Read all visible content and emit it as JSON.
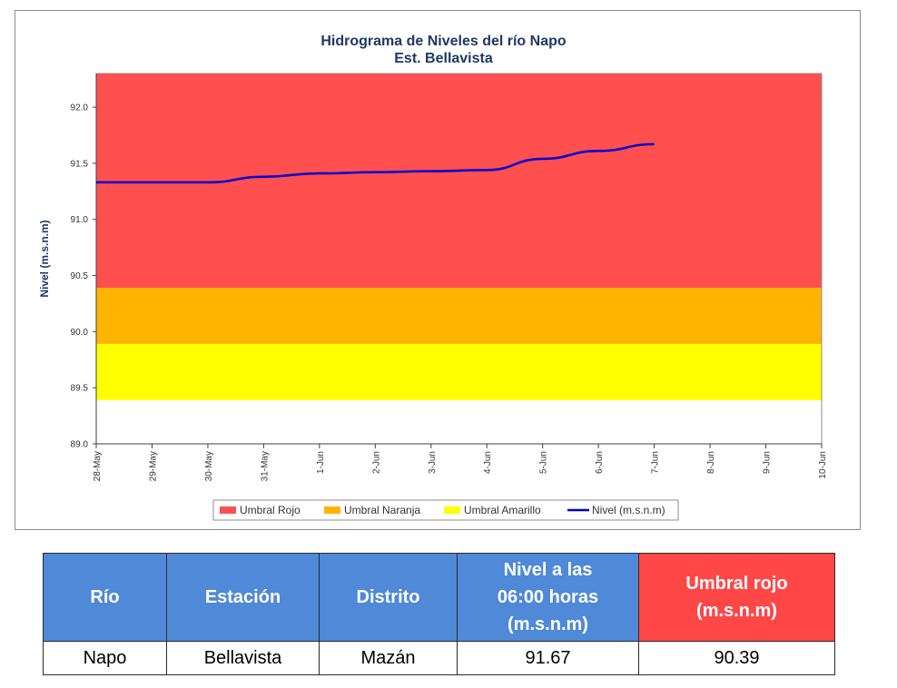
{
  "chart_data": {
    "type": "line",
    "title": "Hidrograma de Niveles del río Napo",
    "subtitle": "Est. Bellavista",
    "ylabel": "Nivel (m.s.n.m)",
    "xlabel": "",
    "ylim": [
      89.0,
      92.3
    ],
    "yticks": [
      "89.0",
      "89.5",
      "90.0",
      "90.5",
      "91.0",
      "91.5",
      "92.0"
    ],
    "categories": [
      "28-May",
      "29-May",
      "30-May",
      "31-May",
      "1-Jun",
      "2-Jun",
      "3-Jun",
      "4-Jun",
      "5-Jun",
      "6-Jun",
      "7-Jun",
      "8-Jun",
      "9-Jun",
      "10-Jun"
    ],
    "bands": [
      {
        "name": "Umbral Rojo",
        "from": 90.39,
        "to": 92.3,
        "color": "#ff4f4f"
      },
      {
        "name": "Umbral Naranja",
        "from": 89.89,
        "to": 90.39,
        "color": "#ffb400"
      },
      {
        "name": "Umbral Amarillo",
        "from": 89.39,
        "to": 89.89,
        "color": "#ffff00"
      }
    ],
    "series": [
      {
        "name": "Nivel (m.s.n.m)",
        "color": "#0000cc",
        "x": [
          "28-May",
          "29-May",
          "30-May",
          "31-May",
          "1-Jun",
          "2-Jun",
          "3-Jun",
          "4-Jun",
          "5-Jun",
          "6-Jun",
          "7-Jun"
        ],
        "values": [
          91.33,
          91.33,
          91.33,
          91.38,
          91.41,
          91.42,
          91.43,
          91.44,
          91.54,
          91.61,
          91.67
        ]
      }
    ],
    "legend": [
      "Umbral Rojo",
      "Umbral Naranja",
      "Umbral Amarillo",
      "Nivel (m.s.n.m)"
    ],
    "legend_position": "bottom",
    "grid": false
  },
  "table": {
    "headers": [
      {
        "lines": [
          "Río"
        ],
        "color": "blue"
      },
      {
        "lines": [
          "Estación"
        ],
        "color": "blue"
      },
      {
        "lines": [
          "Distrito"
        ],
        "color": "blue"
      },
      {
        "lines": [
          "Nivel a las",
          "06:00 horas",
          "(m.s.n.m)"
        ],
        "color": "blue"
      },
      {
        "lines": [
          "Umbral rojo",
          "(m.s.n.m)"
        ],
        "color": "red"
      }
    ],
    "row": [
      "Napo",
      "Bellavista",
      "Mazán",
      "91.67",
      "90.39"
    ]
  }
}
